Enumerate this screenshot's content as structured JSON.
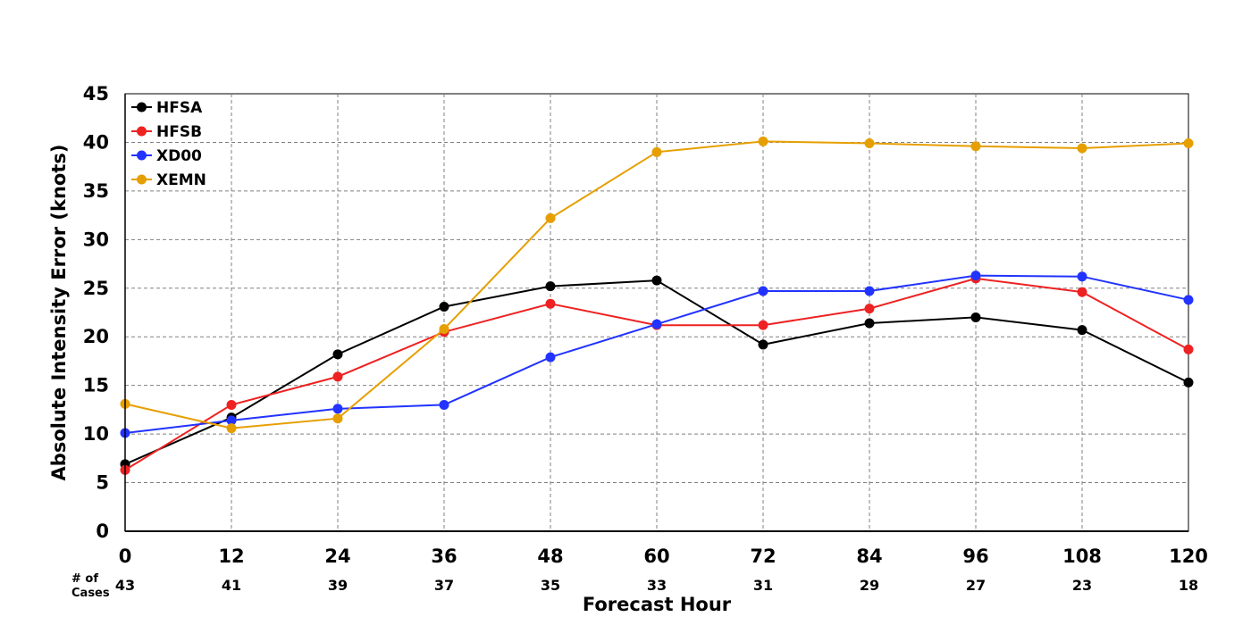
{
  "chart_data": {
    "type": "line",
    "title": "",
    "xlabel": "Forecast Hour",
    "ylabel": "Absolute Intensity Error (knots)",
    "x": [
      0,
      12,
      24,
      36,
      48,
      60,
      72,
      84,
      96,
      108,
      120
    ],
    "xlim": [
      0,
      120
    ],
    "ylim": [
      0,
      45
    ],
    "yticks": [
      0,
      5,
      10,
      15,
      20,
      25,
      30,
      35,
      40,
      45
    ],
    "grid": true,
    "legend_position": "top-left",
    "cases_label_line1": "# of",
    "cases_label_line2": "Cases",
    "cases": [
      43,
      41,
      39,
      37,
      35,
      33,
      31,
      29,
      27,
      23,
      18
    ],
    "series": [
      {
        "name": "HFSA",
        "color": "#000000",
        "values": [
          6.9,
          11.7,
          18.2,
          23.1,
          25.2,
          25.8,
          19.2,
          21.4,
          22.0,
          20.7,
          15.3
        ]
      },
      {
        "name": "HFSB",
        "color": "#ee2222",
        "values": [
          6.3,
          13.0,
          15.9,
          20.5,
          23.4,
          21.2,
          21.2,
          22.9,
          26.0,
          24.6,
          18.7
        ]
      },
      {
        "name": "XD00",
        "color": "#2233ff",
        "values": [
          10.1,
          11.4,
          12.6,
          13.0,
          17.9,
          21.3,
          24.7,
          24.7,
          26.3,
          26.2,
          23.8
        ]
      },
      {
        "name": "XEMN",
        "color": "#e69f00",
        "values": [
          13.1,
          10.6,
          11.6,
          20.8,
          32.2,
          39.0,
          40.1,
          39.9,
          39.6,
          39.4,
          39.9
        ]
      }
    ]
  }
}
